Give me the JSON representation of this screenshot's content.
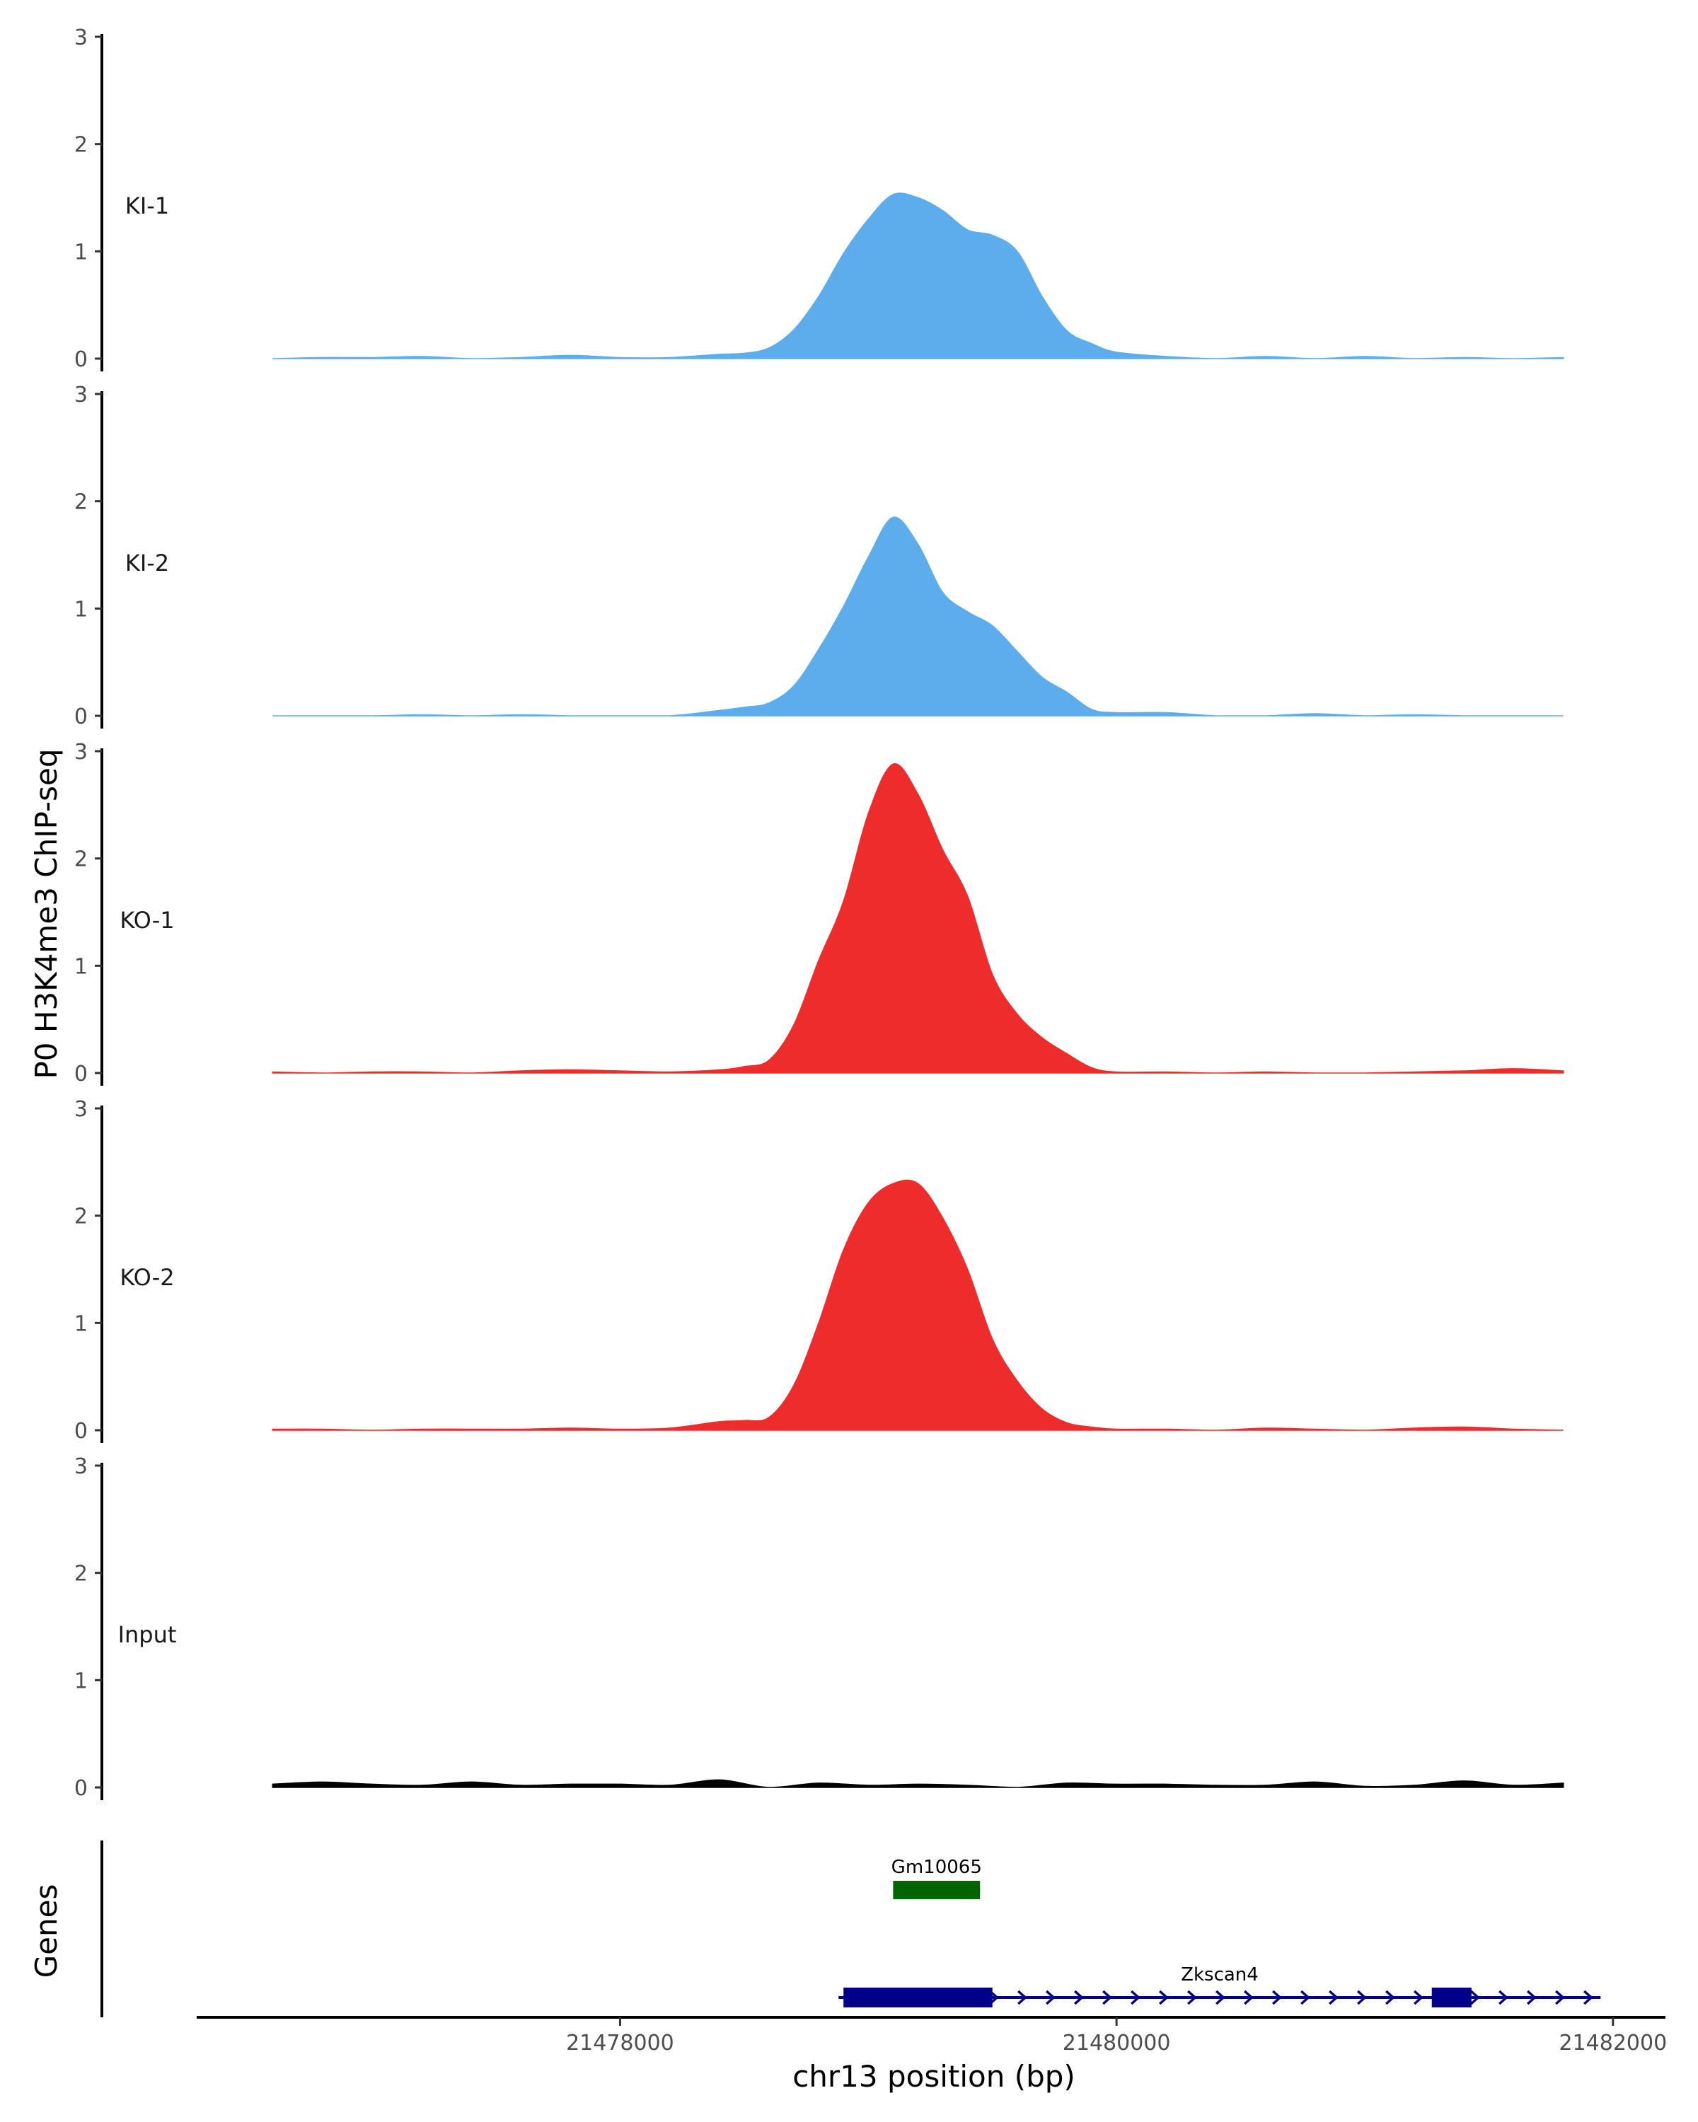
{
  "chart_data": {
    "type": "area",
    "ylabel": "P0 H3K4me3 ChIP-seq",
    "xlabel": "chr13 position (bp)",
    "ylim": [
      0,
      3
    ],
    "y_ticks": [
      0,
      1,
      2,
      3
    ],
    "xlim": [
      21476300,
      21482200
    ],
    "x_ticks": [
      21478000,
      21480000,
      21482000
    ],
    "x_tick_labels": [
      "21478000",
      "21480000",
      "21482000"
    ],
    "grid": false,
    "tracks": [
      {
        "name": "KI-1",
        "color": "#5DADEC",
        "x": [
          21476600,
          21476800,
          21477000,
          21477200,
          21477400,
          21477600,
          21477800,
          21478000,
          21478200,
          21478400,
          21478500,
          21478600,
          21478700,
          21478800,
          21478900,
          21479000,
          21479100,
          21479200,
          21479300,
          21479400,
          21479500,
          21479600,
          21479700,
          21479800,
          21479900,
          21480000,
          21480200,
          21480400,
          21480600,
          21480800,
          21481000,
          21481200,
          21481400,
          21481600,
          21481800
        ],
        "values": [
          0.0,
          0.01,
          0.01,
          0.02,
          0.0,
          0.01,
          0.03,
          0.01,
          0.01,
          0.04,
          0.05,
          0.1,
          0.27,
          0.58,
          0.98,
          1.3,
          1.53,
          1.5,
          1.38,
          1.2,
          1.15,
          1.0,
          0.58,
          0.26,
          0.14,
          0.06,
          0.02,
          0.0,
          0.02,
          0.0,
          0.02,
          0.0,
          0.01,
          0.0,
          0.01
        ]
      },
      {
        "name": "KI-2",
        "color": "#5DADEC",
        "x": [
          21476600,
          21477000,
          21477200,
          21477400,
          21477600,
          21477800,
          21478000,
          21478200,
          21478400,
          21478500,
          21478600,
          21478700,
          21478800,
          21478900,
          21479000,
          21479100,
          21479200,
          21479300,
          21479400,
          21479500,
          21479600,
          21479700,
          21479800,
          21479900,
          21480000,
          21480200,
          21480400,
          21480600,
          21480800,
          21481000,
          21481200,
          21481400,
          21481600,
          21481800
        ],
        "values": [
          0.0,
          0.0,
          0.01,
          0.0,
          0.01,
          0.0,
          0.0,
          0.0,
          0.05,
          0.08,
          0.12,
          0.28,
          0.62,
          1.02,
          1.48,
          1.85,
          1.6,
          1.15,
          0.97,
          0.84,
          0.6,
          0.36,
          0.22,
          0.06,
          0.03,
          0.03,
          0.0,
          0.0,
          0.02,
          0.0,
          0.01,
          0.0,
          0.0,
          0.0
        ]
      },
      {
        "name": "KO-1",
        "color": "#EE2C2C",
        "x": [
          21476600,
          21476800,
          21477000,
          21477200,
          21477400,
          21477600,
          21477800,
          21478000,
          21478200,
          21478400,
          21478500,
          21478600,
          21478700,
          21478800,
          21478900,
          21479000,
          21479100,
          21479200,
          21479300,
          21479400,
          21479500,
          21479600,
          21479700,
          21479800,
          21479900,
          21480000,
          21480200,
          21480400,
          21480600,
          21480800,
          21481000,
          21481200,
          21481400,
          21481600,
          21481800
        ],
        "values": [
          0.01,
          0.0,
          0.01,
          0.01,
          0.0,
          0.02,
          0.03,
          0.02,
          0.01,
          0.03,
          0.06,
          0.12,
          0.45,
          1.05,
          1.6,
          2.42,
          2.88,
          2.6,
          2.08,
          1.65,
          0.92,
          0.55,
          0.33,
          0.18,
          0.05,
          0.01,
          0.01,
          0.0,
          0.01,
          0.0,
          0.0,
          0.01,
          0.02,
          0.04,
          0.02
        ]
      },
      {
        "name": "KO-2",
        "color": "#EE2C2C",
        "x": [
          21476600,
          21476800,
          21477000,
          21477200,
          21477400,
          21477600,
          21477800,
          21478000,
          21478200,
          21478400,
          21478500,
          21478600,
          21478700,
          21478800,
          21478900,
          21479000,
          21479100,
          21479200,
          21479300,
          21479400,
          21479500,
          21479600,
          21479700,
          21479800,
          21479900,
          21480000,
          21480200,
          21480400,
          21480600,
          21480800,
          21481000,
          21481200,
          21481400,
          21481600,
          21481800
        ],
        "values": [
          0.01,
          0.01,
          0.0,
          0.01,
          0.01,
          0.01,
          0.02,
          0.01,
          0.02,
          0.08,
          0.09,
          0.12,
          0.42,
          1.0,
          1.68,
          2.12,
          2.3,
          2.3,
          1.98,
          1.5,
          0.85,
          0.46,
          0.2,
          0.07,
          0.03,
          0.01,
          0.01,
          0.0,
          0.02,
          0.01,
          0.0,
          0.02,
          0.03,
          0.01,
          0.0
        ]
      },
      {
        "name": "Input",
        "color": "#000000",
        "x": [
          21476600,
          21476800,
          21477000,
          21477200,
          21477400,
          21477600,
          21477800,
          21478000,
          21478200,
          21478400,
          21478600,
          21478800,
          21479000,
          21479200,
          21479400,
          21479600,
          21479800,
          21480000,
          21480200,
          21480400,
          21480600,
          21480800,
          21481000,
          21481200,
          21481400,
          21481600,
          21481800
        ],
        "values": [
          0.03,
          0.05,
          0.03,
          0.02,
          0.05,
          0.02,
          0.03,
          0.03,
          0.02,
          0.07,
          0.0,
          0.04,
          0.02,
          0.03,
          0.02,
          0.0,
          0.04,
          0.03,
          0.03,
          0.02,
          0.02,
          0.05,
          0.01,
          0.02,
          0.06,
          0.02,
          0.04
        ]
      }
    ],
    "genes_track": {
      "label": "Genes",
      "genes": [
        {
          "name": "Gm10065",
          "color": "#006400",
          "start": 21479100,
          "end": 21479450,
          "strand": "+",
          "exons": [
            [
              21479100,
              21479450
            ]
          ]
        },
        {
          "name": "Zkscan4",
          "color": "#00008B",
          "start": 21478880,
          "end": 21481950,
          "strand": "+",
          "exons": [
            [
              21478900,
              21479500
            ],
            [
              21481270,
              21481430
            ]
          ]
        }
      ]
    }
  }
}
